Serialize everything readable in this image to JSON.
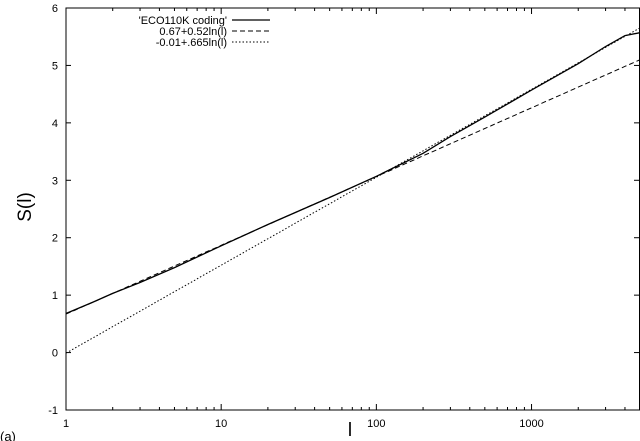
{
  "chart_data": {
    "type": "line",
    "xlabel": "l",
    "ylabel": "S(l)",
    "panel_label": "(a)",
    "xscale": "log",
    "xlim": [
      1,
      5000
    ],
    "ylim": [
      -1,
      6
    ],
    "x_ticks": [
      1,
      10,
      100,
      1000
    ],
    "x_tick_labels": [
      "1",
      "10",
      "100",
      "1000"
    ],
    "y_ticks": [
      -1,
      0,
      1,
      2,
      3,
      4,
      5,
      6
    ],
    "y_tick_labels": [
      "-1",
      "0",
      "1",
      "2",
      "3",
      "4",
      "5",
      "6"
    ],
    "grid": false,
    "legend_position": "top-left",
    "series": [
      {
        "name": "'ECO110K coding'",
        "style": "solid",
        "x": [
          1,
          1.5,
          2,
          3,
          5,
          10,
          20,
          50,
          100,
          200,
          300,
          500,
          1000,
          2000,
          3000,
          4000,
          5000
        ],
        "y": [
          0.68,
          0.88,
          1.03,
          1.22,
          1.48,
          1.86,
          2.23,
          2.7,
          3.07,
          3.47,
          3.76,
          4.1,
          4.57,
          5.03,
          5.33,
          5.52,
          5.57
        ]
      },
      {
        "name": "0.67+0.52ln(l)",
        "style": "dashed",
        "formula": {
          "a": 0.67,
          "b": 0.52
        }
      },
      {
        "name": "-0.01+.665ln(l)",
        "style": "dotted",
        "formula": {
          "a": -0.01,
          "b": 0.665
        }
      }
    ]
  }
}
